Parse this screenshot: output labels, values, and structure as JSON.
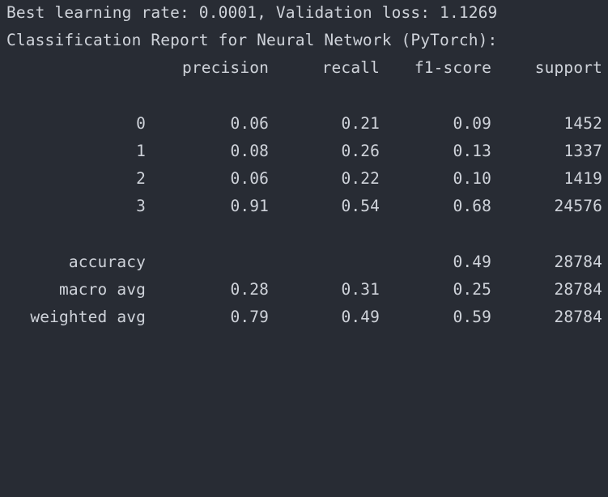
{
  "output": {
    "best_line": "Best learning rate: 0.0001, Validation loss: 1.1269",
    "report_title": "Classification Report for Neural Network (PyTorch):"
  },
  "report": {
    "headers": {
      "precision": "precision",
      "recall": "recall",
      "f1": "f1-score",
      "support": "support"
    },
    "classes": [
      {
        "label": "0",
        "precision": "0.06",
        "recall": "0.21",
        "f1": "0.09",
        "support": "1452"
      },
      {
        "label": "1",
        "precision": "0.08",
        "recall": "0.26",
        "f1": "0.13",
        "support": "1337"
      },
      {
        "label": "2",
        "precision": "0.06",
        "recall": "0.22",
        "f1": "0.10",
        "support": "1419"
      },
      {
        "label": "3",
        "precision": "0.91",
        "recall": "0.54",
        "f1": "0.68",
        "support": "24576"
      }
    ],
    "summary": [
      {
        "label": "accuracy",
        "precision": "",
        "recall": "",
        "f1": "0.49",
        "support": "28784"
      },
      {
        "label": "macro avg",
        "precision": "0.28",
        "recall": "0.31",
        "f1": "0.25",
        "support": "28784"
      },
      {
        "label": "weighted avg",
        "precision": "0.79",
        "recall": "0.49",
        "f1": "0.59",
        "support": "28784"
      }
    ]
  },
  "colors": {
    "background": "#282c34",
    "text": "#cfd3da"
  }
}
